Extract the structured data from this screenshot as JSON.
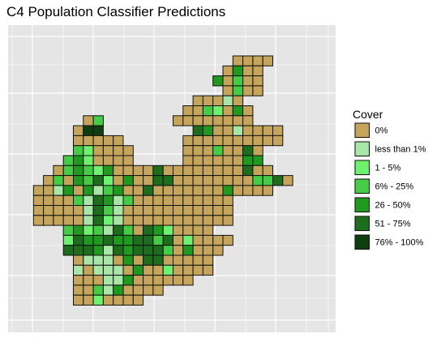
{
  "title": "C4 Population Classifier Predictions",
  "chart_data": {
    "type": "heatmap",
    "title": "C4 Population Classifier Predictions",
    "xlabel": "",
    "ylabel": "",
    "grid": true,
    "legend_placement": "right",
    "legend": {
      "title": "Cover",
      "entries": [
        {
          "label": "0%",
          "color": "#c4a55a"
        },
        {
          "label": "less than 1%",
          "color": "#a8e6a8"
        },
        {
          "label": "1 - 5%",
          "color": "#6cf26c"
        },
        {
          "label": "6% - 25%",
          "color": "#44cc44"
        },
        {
          "label": "26 - 50%",
          "color": "#1e9a1e"
        },
        {
          "label": "51 - 75%",
          "color": "#1c6e1c"
        },
        {
          "label": "76% - 100%",
          "color": "#0e3e0e"
        }
      ]
    },
    "cell_codes": "0 = 0%, 1 = less than 1%, 2 = 1 - 5%, 3 = 6% - 25%, 4 = 26 - 50%, 5 = 51 - 75%, 6 = 76% - 100%",
    "rows": [
      {
        "row": 0,
        "start": 21,
        "cells": [
          0,
          0,
          0,
          0
        ]
      },
      {
        "row": 1,
        "start": 20,
        "cells": [
          0,
          4,
          0,
          0
        ]
      },
      {
        "row": 2,
        "start": 19,
        "cells": [
          4,
          0,
          3,
          0,
          0
        ]
      },
      {
        "row": 3,
        "start": 20,
        "cells": [
          0,
          3,
          0,
          0
        ]
      },
      {
        "row": 4,
        "start": 17,
        "cells": [
          0,
          0,
          0,
          1,
          0
        ]
      },
      {
        "row": 5,
        "start": 16,
        "cells": [
          0,
          0,
          3,
          2,
          0,
          4,
          0
        ]
      },
      {
        "row": 6,
        "start": 6,
        "cells": [
          0,
          3
        ]
      },
      {
        "row": 6,
        "start": 15,
        "cells": [
          0,
          0,
          0,
          0,
          0,
          0,
          0,
          0
        ]
      },
      {
        "row": 7,
        "start": 5,
        "cells": [
          0,
          6,
          6
        ]
      },
      {
        "row": 7,
        "start": 17,
        "cells": [
          5,
          4,
          0,
          0,
          1,
          0,
          0,
          0,
          0
        ]
      },
      {
        "row": 8,
        "start": 5,
        "cells": [
          0,
          0,
          0,
          0,
          0
        ]
      },
      {
        "row": 8,
        "start": 16,
        "cells": [
          0,
          0,
          0,
          0,
          0,
          0,
          0,
          0,
          0,
          0
        ]
      },
      {
        "row": 9,
        "start": 5,
        "cells": [
          3,
          2,
          0,
          0,
          0,
          0
        ]
      },
      {
        "row": 9,
        "start": 16,
        "cells": [
          0,
          0,
          0,
          3,
          0,
          0,
          5,
          0
        ]
      },
      {
        "row": 10,
        "start": 4,
        "cells": [
          3,
          4,
          2,
          0,
          0,
          0,
          0
        ]
      },
      {
        "row": 10,
        "start": 16,
        "cells": [
          0,
          0,
          0,
          0,
          0,
          0,
          4,
          4
        ]
      },
      {
        "row": 11,
        "start": 3,
        "cells": [
          0,
          3,
          4,
          3,
          2,
          4,
          0,
          0,
          0,
          0,
          5,
          0
        ]
      },
      {
        "row": 11,
        "start": 15,
        "cells": [
          0,
          0,
          0,
          0,
          0,
          0,
          0,
          5,
          0,
          0
        ]
      },
      {
        "row": 12,
        "start": 2,
        "cells": [
          0,
          3,
          0,
          4,
          3,
          5,
          2,
          0,
          4,
          0,
          0,
          5,
          5,
          0,
          0,
          0,
          0,
          0,
          0,
          0,
          0,
          3,
          3,
          5,
          0
        ]
      },
      {
        "row": 13,
        "start": 1,
        "cells": [
          0,
          0,
          1,
          4,
          0,
          4,
          1,
          3,
          4,
          0,
          0,
          5,
          0,
          0,
          0,
          0,
          0,
          0,
          0,
          4,
          0,
          0,
          0,
          0
        ]
      },
      {
        "row": 14,
        "start": 1,
        "cells": [
          0,
          0,
          0,
          0,
          3,
          1,
          5,
          4,
          1,
          3,
          0,
          0,
          0,
          0,
          0,
          0,
          0,
          0,
          0,
          0
        ]
      },
      {
        "row": 15,
        "start": 1,
        "cells": [
          0,
          0,
          0,
          0,
          0,
          1,
          5,
          3,
          1,
          0,
          0,
          0,
          0,
          0,
          0,
          0,
          0,
          0,
          0,
          0
        ]
      },
      {
        "row": 16,
        "start": 1,
        "cells": [
          0,
          0,
          0,
          0,
          0,
          1,
          5,
          2,
          1,
          0,
          0,
          0,
          0,
          0,
          0,
          0,
          0,
          0,
          0,
          0
        ]
      },
      {
        "row": 17,
        "start": 4,
        "cells": [
          3,
          4,
          2,
          3,
          1,
          5,
          3,
          0,
          5,
          4,
          2,
          0,
          0,
          0,
          0
        ]
      },
      {
        "row": 18,
        "start": 4,
        "cells": [
          2,
          5,
          4,
          4,
          5,
          4,
          4,
          5,
          5,
          3,
          5,
          0,
          2,
          0,
          0,
          0,
          0
        ]
      },
      {
        "row": 19,
        "start": 4,
        "cells": [
          5,
          5,
          5,
          4,
          1,
          5,
          4,
          5,
          5,
          5,
          3,
          0,
          4,
          0,
          0,
          0
        ]
      },
      {
        "row": 20,
        "start": 5,
        "cells": [
          0,
          1,
          1,
          1,
          0,
          4,
          0,
          5,
          5,
          0,
          0,
          0,
          0,
          0
        ]
      },
      {
        "row": 21,
        "start": 5,
        "cells": [
          1,
          0,
          1,
          1,
          1,
          0,
          4,
          0,
          0,
          2,
          0,
          0,
          0,
          0
        ]
      },
      {
        "row": 22,
        "start": 5,
        "cells": [
          0,
          0,
          0,
          1,
          1,
          4,
          0,
          0,
          0,
          0,
          0,
          0
        ]
      },
      {
        "row": 23,
        "start": 5,
        "cells": [
          0,
          0,
          3,
          1,
          4,
          0,
          0,
          0,
          0
        ]
      },
      {
        "row": 24,
        "start": 5,
        "cells": [
          0,
          0,
          2,
          0,
          0,
          0,
          0
        ]
      }
    ]
  }
}
